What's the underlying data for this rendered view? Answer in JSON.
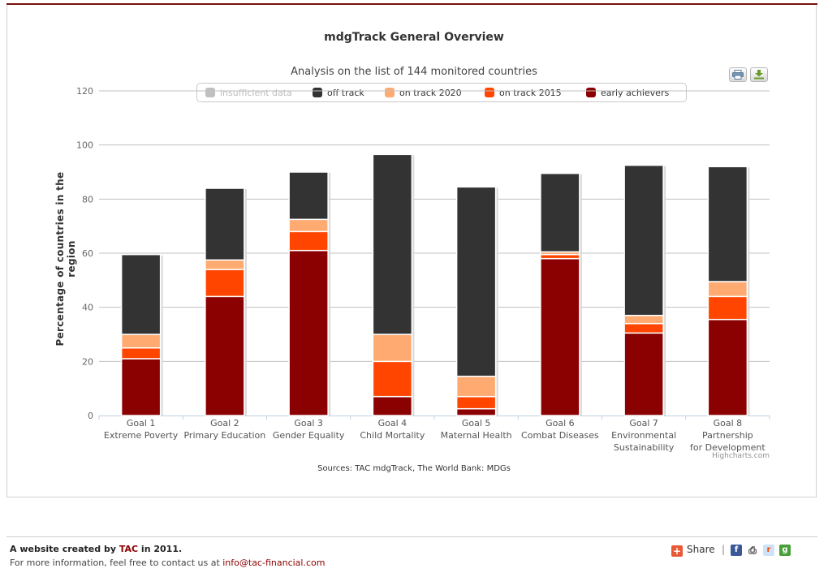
{
  "chart_data": {
    "type": "bar",
    "stacked": true,
    "title": "mdgTrack General Overview",
    "subtitle": "Analysis on the list of 144 monitored countries",
    "ylabel": "Percentage of countries in the region",
    "ylim": [
      0,
      120
    ],
    "yticks": [
      0,
      20,
      40,
      60,
      80,
      100,
      120
    ],
    "grid": true,
    "legend_position": "top-center",
    "categories": [
      [
        "Goal 1",
        "Extreme Poverty"
      ],
      [
        "Goal 2",
        "Primary Education"
      ],
      [
        "Goal 3",
        "Gender Equality"
      ],
      [
        "Goal 4",
        "Child Mortality"
      ],
      [
        "Goal 5",
        "Maternal Health"
      ],
      [
        "Goal 6",
        "Combat Diseases"
      ],
      [
        "Goal 7",
        "Environmental",
        "Sustainability"
      ],
      [
        "Goal 8",
        "Partnership",
        "for Development"
      ]
    ],
    "series": [
      {
        "name": "insufficient data",
        "color": "#c0c0c0",
        "visible": false,
        "values": [
          0,
          0,
          0,
          0,
          0,
          0,
          0,
          0
        ]
      },
      {
        "name": "off track",
        "color": "#333333",
        "visible": true,
        "values": [
          29.5,
          26.5,
          17.5,
          66.5,
          70,
          29,
          55.5,
          42.5
        ]
      },
      {
        "name": "on track 2020",
        "color": "#ffaa70",
        "visible": true,
        "values": [
          5,
          3.5,
          4.5,
          10,
          7.5,
          1,
          3,
          5.5
        ]
      },
      {
        "name": "on track 2015",
        "color": "#ff4500",
        "visible": true,
        "values": [
          4,
          10,
          7,
          13,
          4.5,
          1.5,
          3.5,
          8.5
        ]
      },
      {
        "name": "early achievers",
        "color": "#8b0000",
        "visible": true,
        "values": [
          21,
          44,
          61,
          7,
          2.5,
          58,
          30.5,
          35.5
        ]
      }
    ],
    "source": "Sources: TAC mdgTrack, The World Bank: MDGs",
    "credits": "Highcharts.com"
  },
  "footer": {
    "created_prefix": "A website created by ",
    "created_brand": "TAC",
    "created_suffix": " in 2011.",
    "contact_text": "For more information, feel free to contact us at ",
    "contact_email": "info@tac-financial.com"
  },
  "share": {
    "label": "Share",
    "separator": "|"
  },
  "social": {
    "facebook": "f",
    "print": "⎙",
    "reddit": "r",
    "google": "g"
  },
  "icons": {
    "print": "print-icon",
    "download": "download-icon",
    "share": "plus-icon"
  }
}
